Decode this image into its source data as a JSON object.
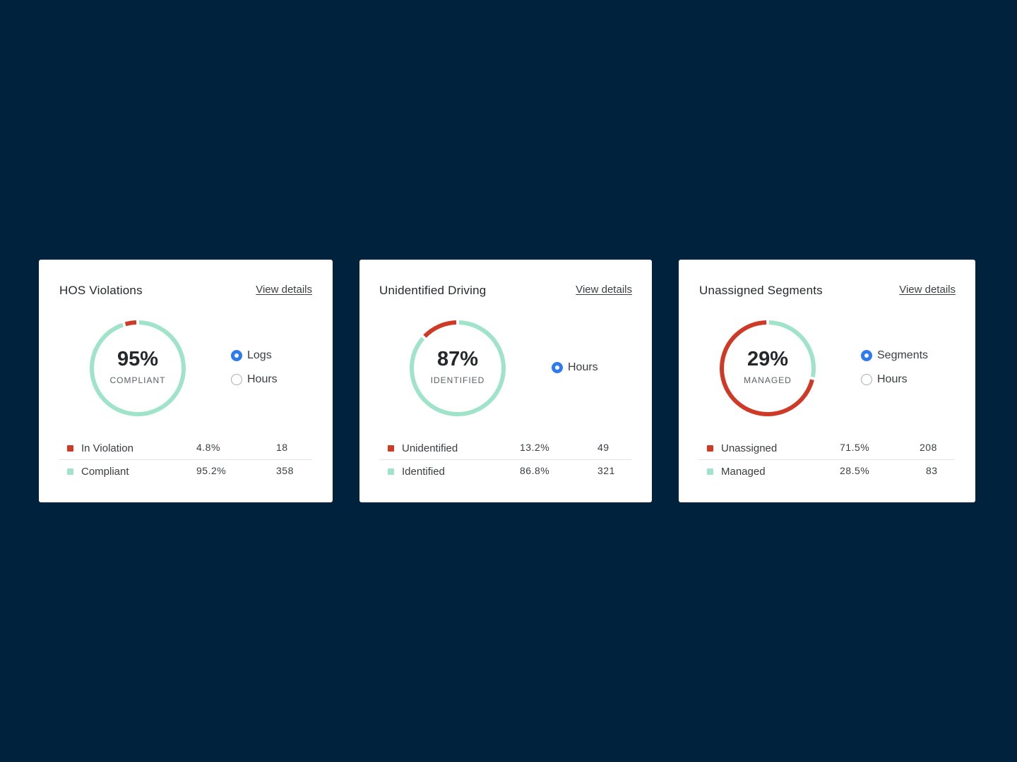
{
  "colors": {
    "background": "#00223c",
    "violation": "#cf3a27",
    "compliant": "#9fe3ca",
    "accent": "#2e7bf0"
  },
  "cards": [
    {
      "title": "HOS Violations",
      "view_details": "View details",
      "donut": {
        "value": "95%",
        "label": "COMPLIANT",
        "red_fraction": 0.048,
        "green_fraction": 0.952
      },
      "radios": [
        {
          "label": "Logs",
          "checked": true
        },
        {
          "label": "Hours",
          "checked": false
        }
      ],
      "legend": [
        {
          "name": "In Violation",
          "pct": "4.8%",
          "count": "18",
          "color": "#cf3a27"
        },
        {
          "name": "Compliant",
          "pct": "95.2%",
          "count": "358",
          "color": "#9fe3ca"
        }
      ]
    },
    {
      "title": "Unidentified Driving",
      "view_details": "View details",
      "donut": {
        "value": "87%",
        "label": "IDENTIFIED",
        "red_fraction": 0.132,
        "green_fraction": 0.868
      },
      "radios": [
        {
          "label": "Hours",
          "checked": true
        }
      ],
      "legend": [
        {
          "name": "Unidentified",
          "pct": "13.2%",
          "count": "49",
          "color": "#cf3a27"
        },
        {
          "name": "Identified",
          "pct": "86.8%",
          "count": "321",
          "color": "#9fe3ca"
        }
      ]
    },
    {
      "title": "Unassigned Segments",
      "view_details": "View details",
      "donut": {
        "value": "29%",
        "label": "MANAGED",
        "red_fraction": 0.715,
        "green_fraction": 0.285
      },
      "radios": [
        {
          "label": "Segments",
          "checked": true
        },
        {
          "label": "Hours",
          "checked": false
        }
      ],
      "legend": [
        {
          "name": "Unassigned",
          "pct": "71.5%",
          "count": "208",
          "color": "#cf3a27"
        },
        {
          "name": "Managed",
          "pct": "28.5%",
          "count": "83",
          "color": "#9fe3ca"
        }
      ]
    }
  ]
}
